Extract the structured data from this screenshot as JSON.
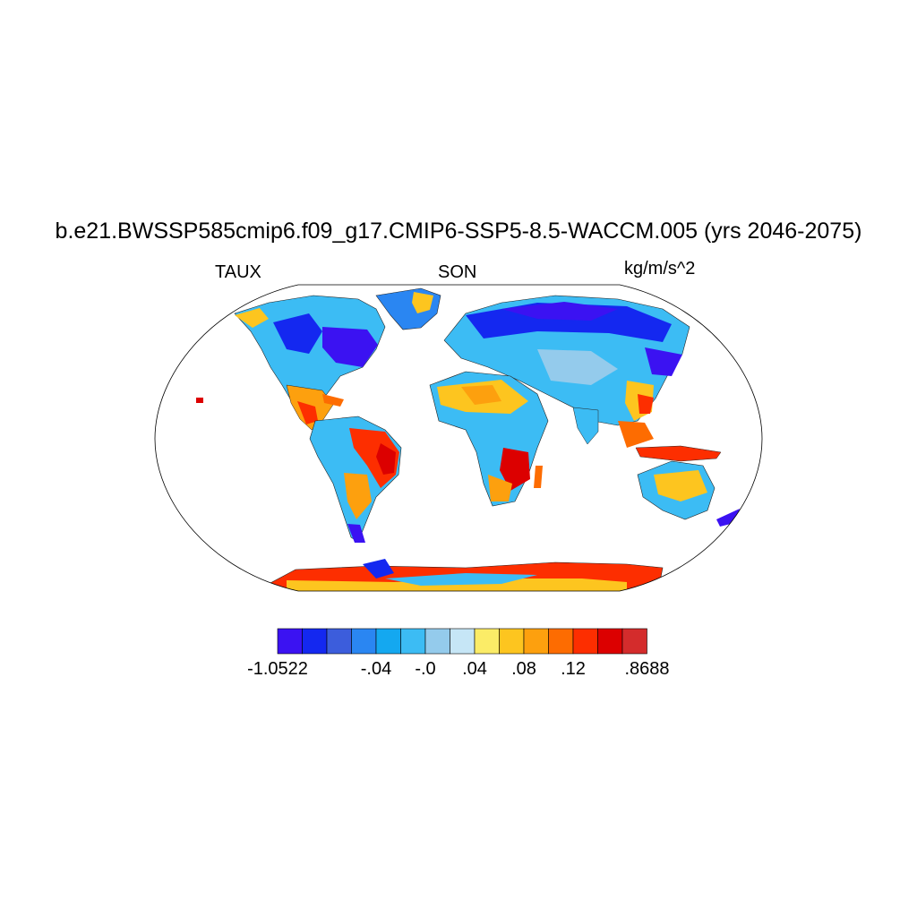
{
  "title": "b.e21.BWSSP585cmip6.f09_g17.CMIP6-SSP5-8.5-WACCM.005 (yrs 2046-2075)",
  "left_string": "TAUX",
  "center_string": "SON",
  "right_string": "kg/m/s^2",
  "colorbar": {
    "colors": [
      "#3b12f2",
      "#1428f0",
      "#3c5ddc",
      "#2a86f2",
      "#14a8f0",
      "#3cbcf4",
      "#94cbec",
      "#c6e6f6",
      "#fbec67",
      "#fdc51f",
      "#fda00e",
      "#fd6c01",
      "#fd2e00",
      "#dc0000",
      "#d42c2c"
    ],
    "labels": [
      {
        "text": "-1.0522",
        "boundary": 0
      },
      {
        "text": "-.04",
        "boundary": 4
      },
      {
        "text": "-.0",
        "boundary": 6
      },
      {
        "text": ".04",
        "boundary": 8
      },
      {
        "text": ".08",
        "boundary": 10
      },
      {
        "text": ".12",
        "boundary": 12
      },
      {
        "text": ".8688",
        "boundary": 15
      }
    ]
  }
}
